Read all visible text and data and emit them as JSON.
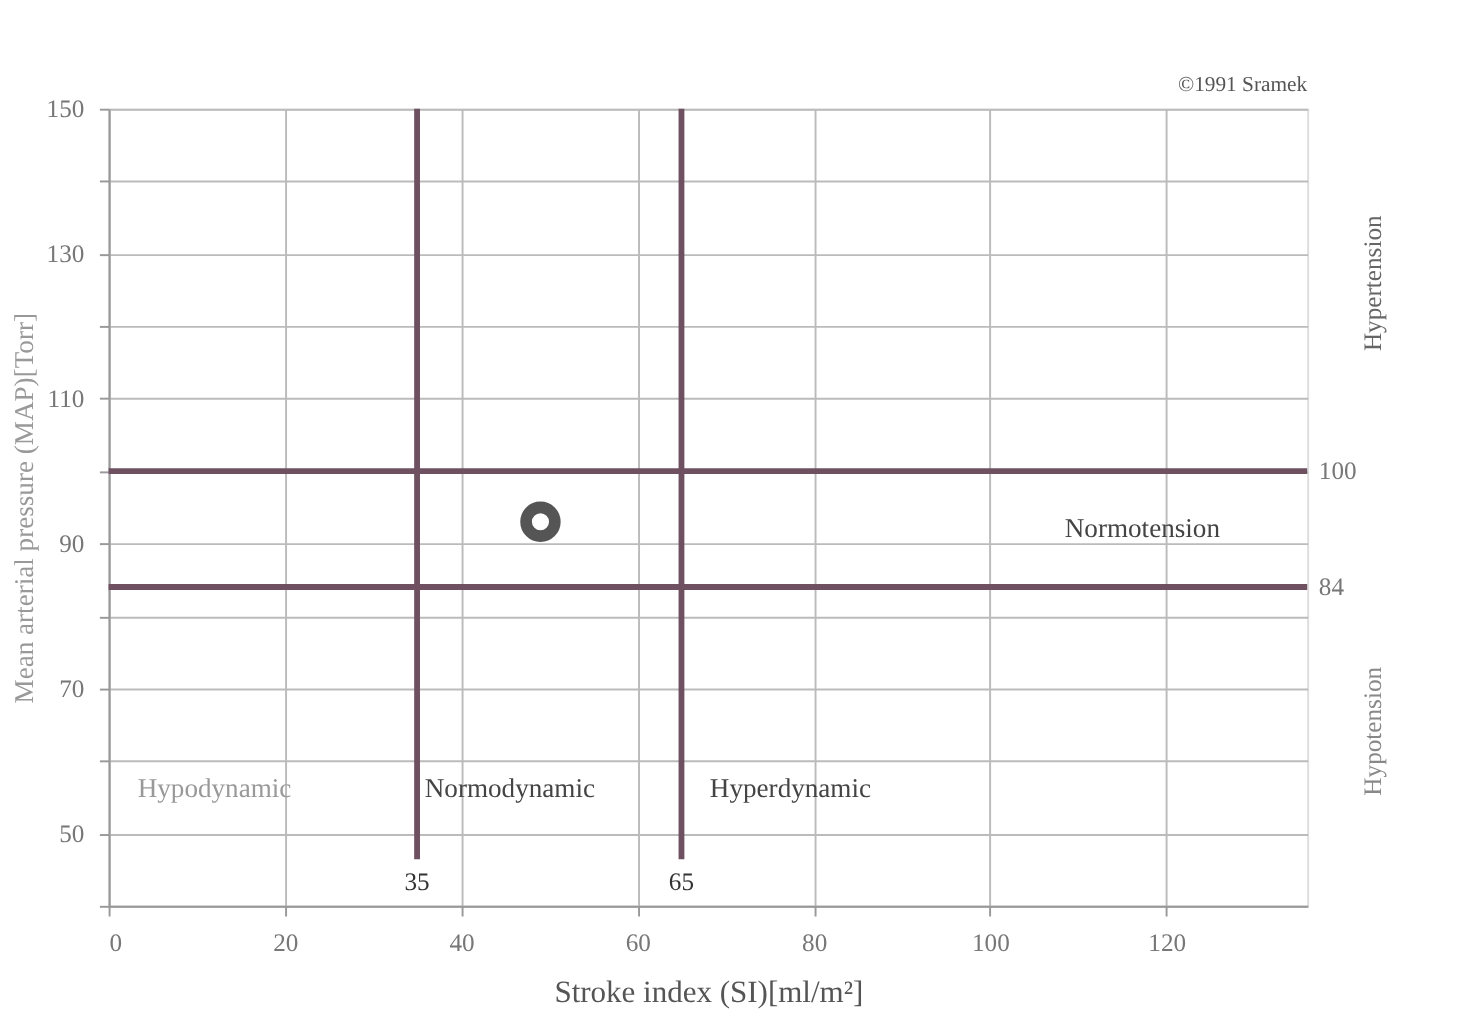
{
  "chart_data": {
    "type": "scatter",
    "xlabel": "Stroke index (SI)[ml/m²]",
    "ylabel": "Mean arterial pressure (MAP)[Torr]",
    "x": [
      49
    ],
    "series": [
      {
        "color": "#555555",
        "values": [
          93
        ]
      }
    ],
    "marker": "circle",
    "xlim": [
      0,
      136
    ],
    "ylim": [
      40,
      150
    ],
    "xticks": [
      0,
      20,
      40,
      60,
      80,
      100,
      120
    ],
    "yticks": [
      {
        "value": 40,
        "label": null
      },
      50,
      {
        "value": 60,
        "label": null
      },
      70,
      {
        "value": 80,
        "label": null
      },
      90,
      {
        "value": 100,
        "label": null
      },
      110,
      {
        "value": 120,
        "label": null
      },
      130,
      {
        "value": 140,
        "label": null
      },
      150
    ],
    "grid": true,
    "ref_lines": [
      {
        "axis": "x",
        "value": 35,
        "label": "35",
        "color": "#6e5060"
      },
      {
        "axis": "x",
        "value": 65,
        "label": "65",
        "color": "#6e5060"
      },
      {
        "axis": "y",
        "value": 100,
        "label": "100",
        "color": "#6e5060"
      },
      {
        "axis": "y",
        "value": 84,
        "label": "84",
        "color": "#6e5060"
      }
    ],
    "annotations": [
      "©1991 Sramek",
      "Hypertension",
      "Hypotension",
      "Normotension",
      "Hypodynamic",
      "Normodynamic",
      "Hyperdynamic"
    ]
  }
}
